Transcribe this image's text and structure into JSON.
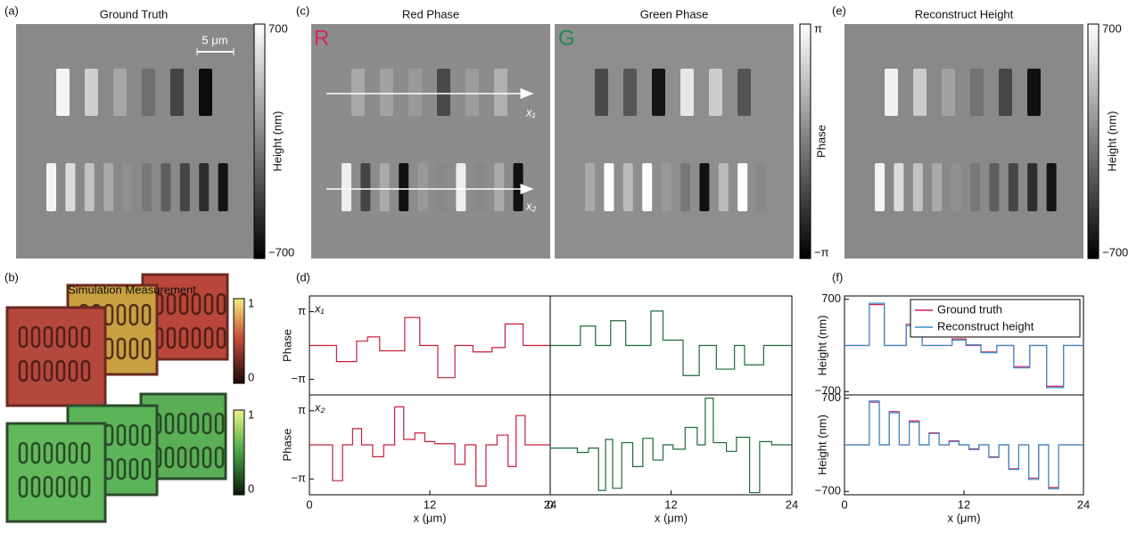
{
  "panels": {
    "a": {
      "label": "(a)",
      "title": "Ground Truth",
      "scale_bar": "5 μm",
      "colorbar": {
        "max": "700",
        "min": "−700",
        "title": "Height (nm)"
      }
    },
    "b": {
      "label": "(b)",
      "title": "Simulation Measurement",
      "colorbar_red": {
        "max": "1",
        "min": "0"
      },
      "colorbar_green": {
        "max": "1",
        "min": "0"
      }
    },
    "c": {
      "label": "(c)",
      "red_title": "Red Phase",
      "green_title": "Green Phase",
      "red_letter": "R",
      "green_letter": "G",
      "arrow_1": "x₁",
      "arrow_2": "x₂",
      "colorbar": {
        "max": "π",
        "min": "−π",
        "title": "Phase"
      }
    },
    "d": {
      "label": "(d)"
    },
    "e": {
      "label": "(e)",
      "title": "Reconstruct Height",
      "colorbar": {
        "max": "700",
        "min": "−700",
        "title": "Height (nm)"
      }
    },
    "f": {
      "label": "(f)"
    }
  },
  "chart_data": [
    {
      "type": "line",
      "ylabel": "Phase",
      "annotation": "x₁",
      "xlim": [
        0,
        24
      ],
      "ylim": [
        -4.6,
        4.6
      ],
      "yticks": [
        {
          "value": 3.1416,
          "label": "π"
        },
        {
          "value": -3.1416,
          "label": "−π"
        }
      ],
      "x": [
        0,
        2.7,
        2.7,
        4.7,
        4.7,
        5.8,
        5.8,
        7,
        7,
        9.5,
        9.5,
        11,
        11,
        12.8,
        12.8,
        14.5,
        14.5,
        16.3,
        16.3,
        18.2,
        18.2,
        19.5,
        19.5,
        21.3,
        21.3,
        24
      ],
      "series": [
        {
          "color": "#c8203a",
          "values": [
            0,
            0,
            -1.5,
            -1.5,
            0.4,
            0.4,
            0.8,
            0.8,
            -0.5,
            -0.5,
            2.6,
            2.6,
            0,
            0,
            -3,
            -3,
            0,
            0,
            -0.6,
            -0.6,
            -0.2,
            -0.2,
            2,
            2,
            0,
            0
          ]
        }
      ]
    },
    {
      "type": "line",
      "xlim": [
        0,
        24
      ],
      "ylim": [
        -4.6,
        4.6
      ],
      "x": [
        0,
        3,
        3,
        4.5,
        4.5,
        6,
        6,
        7.5,
        7.5,
        10,
        10,
        11.2,
        11.2,
        13.2,
        13.2,
        14.8,
        14.8,
        16.5,
        16.5,
        18.3,
        18.3,
        19.3,
        19.3,
        21.2,
        21.2,
        24
      ],
      "series": [
        {
          "color": "#1f6b3a",
          "values": [
            0,
            0,
            1.8,
            1.8,
            0,
            0,
            2.3,
            2.3,
            0,
            0,
            3.2,
            3.2,
            0.5,
            0.5,
            -2.8,
            -2.8,
            0,
            0,
            -2.2,
            -2.2,
            0,
            0,
            -1.8,
            -1.8,
            0,
            0
          ]
        }
      ]
    },
    {
      "type": "line",
      "ylabel": "Phase",
      "annotation": "x₂",
      "xlabel": "x (μm)",
      "xlim": [
        0,
        24
      ],
      "xticks": [
        0,
        12,
        24
      ],
      "ylim": [
        -4.6,
        4.6
      ],
      "yticks": [
        {
          "value": 3.1416,
          "label": "π"
        },
        {
          "value": -3.1416,
          "label": "−π"
        }
      ],
      "x": [
        0,
        2.3,
        2.3,
        3.3,
        3.3,
        4.3,
        4.3,
        5.2,
        5.2,
        6.3,
        6.3,
        7.4,
        7.4,
        8.5,
        8.5,
        9.4,
        9.4,
        10.5,
        10.5,
        11.5,
        11.5,
        12.5,
        12.5,
        14.5,
        14.5,
        15.5,
        15.5,
        16.6,
        16.6,
        17.6,
        17.6,
        18.7,
        18.7,
        19.8,
        19.8,
        20.6,
        20.6,
        21.5,
        21.5,
        24
      ],
      "series": [
        {
          "color": "#c8203a",
          "values": [
            0,
            0,
            -3.3,
            -3.3,
            0,
            0,
            1.5,
            1.5,
            0,
            0,
            -1.1,
            -1.1,
            0,
            0,
            3.5,
            3.5,
            0.5,
            0.5,
            1.1,
            1.1,
            0.3,
            0.3,
            0.1,
            0.1,
            -1.8,
            -1.8,
            0,
            0,
            -3.8,
            -3.8,
            0,
            0,
            0.9,
            0.9,
            -2,
            -2,
            2.7,
            2.7,
            0,
            0
          ]
        }
      ]
    },
    {
      "type": "line",
      "xlabel": "x (μm)",
      "xlim": [
        0,
        24
      ],
      "xticks": [
        0,
        12,
        24
      ],
      "ylim": [
        -4.6,
        4.6
      ],
      "x": [
        0,
        2.7,
        2.7,
        3.8,
        3.8,
        4.8,
        4.8,
        5.5,
        5.5,
        6.2,
        6.2,
        7.1,
        7.1,
        8.2,
        8.2,
        9.2,
        9.2,
        10.2,
        10.2,
        11.2,
        11.2,
        12.2,
        12.2,
        13.4,
        13.4,
        14.6,
        14.6,
        15.4,
        15.4,
        16.2,
        16.2,
        17.5,
        17.5,
        18.5,
        18.5,
        19.8,
        19.8,
        20.8,
        20.8,
        22,
        22,
        24
      ],
      "series": [
        {
          "color": "#1f6b3a",
          "values": [
            -0.3,
            -0.3,
            -0.7,
            -0.7,
            -0.3,
            -0.3,
            -4.2,
            -4.2,
            0.5,
            0.5,
            -4,
            -4,
            0.2,
            0.2,
            -2,
            -2,
            0.6,
            0.6,
            -1.4,
            -1.4,
            0,
            0,
            -0.4,
            -0.4,
            1.6,
            1.6,
            0,
            0,
            4.3,
            4.3,
            0.2,
            0.2,
            -0.6,
            -0.6,
            0.7,
            0.7,
            -4.4,
            -4.4,
            0.3,
            0.3,
            0,
            0
          ]
        }
      ]
    },
    {
      "type": "line",
      "ylabel": "Height (nm)",
      "xlim": [
        0,
        24
      ],
      "ylim": [
        -750,
        750
      ],
      "legend": "upper right",
      "yticks": [
        700,
        {
          "value": -700,
          "label": "−700"
        }
      ],
      "x": [
        0,
        2.5,
        2.5,
        4,
        4,
        6.2,
        6.2,
        7.8,
        7.8,
        10.8,
        10.8,
        12.2,
        12.2,
        13.7,
        13.7,
        15.3,
        15.3,
        17,
        17,
        18.6,
        18.6,
        20.3,
        20.3,
        22,
        22,
        24
      ],
      "series": [
        {
          "name": "Ground truth",
          "color": "#d01c5c",
          "values": [
            0,
            0,
            620,
            620,
            0,
            0,
            320,
            320,
            0,
            0,
            100,
            100,
            0,
            0,
            -100,
            -100,
            0,
            0,
            -320,
            -320,
            0,
            0,
            -620,
            -620,
            0,
            0
          ]
        },
        {
          "name": "Reconstruct height",
          "color": "#3a8fc8",
          "values": [
            0,
            0,
            640,
            640,
            0,
            0,
            300,
            300,
            0,
            0,
            80,
            80,
            10,
            10,
            -110,
            -110,
            0,
            0,
            -340,
            -340,
            0,
            0,
            -640,
            -640,
            0,
            0
          ]
        }
      ]
    },
    {
      "type": "line",
      "ylabel": "Height (nm)",
      "xlabel": "x (μm)",
      "xlim": [
        0,
        24
      ],
      "xticks": [
        0,
        12,
        24
      ],
      "ylim": [
        -750,
        750
      ],
      "yticks": [
        700,
        {
          "value": -700,
          "label": "−700"
        }
      ],
      "x": [
        0,
        2.5,
        2.5,
        3.5,
        3.5,
        4.5,
        4.5,
        5.5,
        5.5,
        6.5,
        6.5,
        7.5,
        7.5,
        8.5,
        8.5,
        9.5,
        9.5,
        10.5,
        10.5,
        11.5,
        11.5,
        12.5,
        12.5,
        13.5,
        13.5,
        14.5,
        14.5,
        15.5,
        15.5,
        16.5,
        16.5,
        17.5,
        17.5,
        18.5,
        18.5,
        19.5,
        19.5,
        20.5,
        20.5,
        21.5,
        21.5,
        24
      ],
      "series": [
        {
          "color": "#d01c5c",
          "values": [
            0,
            0,
            640,
            640,
            0,
            0,
            500,
            500,
            0,
            0,
            360,
            360,
            0,
            0,
            180,
            180,
            0,
            0,
            60,
            60,
            0,
            0,
            -60,
            -60,
            0,
            0,
            -180,
            -180,
            0,
            0,
            -360,
            -360,
            0,
            0,
            -500,
            -500,
            0,
            0,
            -640,
            -640,
            0,
            0
          ]
        },
        {
          "color": "#3a8fc8",
          "values": [
            0,
            0,
            660,
            660,
            0,
            0,
            480,
            480,
            0,
            0,
            340,
            340,
            0,
            0,
            170,
            170,
            0,
            0,
            50,
            50,
            0,
            0,
            -70,
            -70,
            0,
            0,
            -190,
            -190,
            0,
            0,
            -370,
            -370,
            0,
            0,
            -520,
            -520,
            0,
            0,
            -660,
            -660,
            0,
            0
          ]
        }
      ]
    }
  ]
}
